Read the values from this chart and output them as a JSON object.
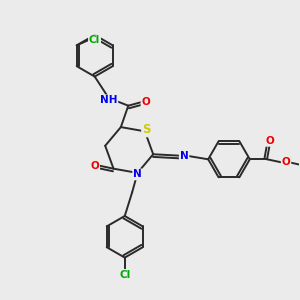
{
  "background_color": "#ebebeb",
  "atom_colors": {
    "C": "#2a2a2a",
    "N": "#0000ee",
    "O": "#ee0000",
    "S": "#cccc00",
    "Cl": "#00aa00",
    "H": "#2a2a2a"
  },
  "bond_color": "#2a2a2a",
  "bond_width": 1.4,
  "font_size": 7.5,
  "title": ""
}
